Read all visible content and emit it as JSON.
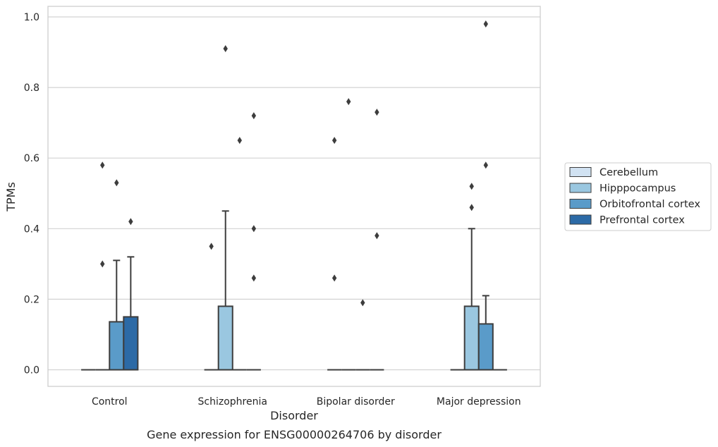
{
  "caption": "Gene expression for ENSG00000264706 by disorder",
  "chart_data": {
    "type": "box",
    "xlabel": "Disorder",
    "ylabel": "TPMs",
    "ylim": [
      -0.047,
      1.03
    ],
    "yticks": [
      "0.0",
      "0.2",
      "0.4",
      "0.6",
      "0.8",
      "1.0"
    ],
    "grid": true,
    "legend_position": "right",
    "categories": [
      "Control",
      "Schizophrenia",
      "Bipolar disorder",
      "Major depression"
    ],
    "series": [
      {
        "name": "Cerebellum",
        "color": "#d1e2f2",
        "boxes": [
          {
            "q1": 0,
            "median": 0,
            "q3": 0,
            "whisker_low": 0,
            "whisker_high": 0,
            "outliers": []
          },
          {
            "q1": 0,
            "median": 0,
            "q3": 0,
            "whisker_low": 0,
            "whisker_high": 0,
            "outliers": [
              0.35
            ]
          },
          {
            "q1": 0,
            "median": 0,
            "q3": 0,
            "whisker_low": 0,
            "whisker_high": 0,
            "outliers": [
              0.65,
              0.26
            ]
          },
          {
            "q1": 0,
            "median": 0,
            "q3": 0,
            "whisker_low": 0,
            "whisker_high": 0,
            "outliers": []
          }
        ]
      },
      {
        "name": "Hipppocampus",
        "color": "#9ac7e0",
        "boxes": [
          {
            "q1": 0,
            "median": 0,
            "q3": 0,
            "whisker_low": 0,
            "whisker_high": 0,
            "outliers": [
              0.58,
              0.3
            ]
          },
          {
            "q1": 0,
            "median": 0,
            "q3": 0.18,
            "whisker_low": 0,
            "whisker_high": 0.45,
            "outliers": [
              0.91
            ]
          },
          {
            "q1": 0,
            "median": 0,
            "q3": 0,
            "whisker_low": 0,
            "whisker_high": 0,
            "outliers": [
              0.76
            ]
          },
          {
            "q1": 0,
            "median": 0,
            "q3": 0.18,
            "whisker_low": 0,
            "whisker_high": 0.4,
            "outliers": [
              0.52,
              0.46
            ]
          }
        ]
      },
      {
        "name": "Orbitofrontal cortex",
        "color": "#5a9bc9",
        "boxes": [
          {
            "q1": 0,
            "median": 0,
            "q3": 0.136,
            "whisker_low": 0,
            "whisker_high": 0.31,
            "outliers": [
              0.53
            ]
          },
          {
            "q1": 0,
            "median": 0,
            "q3": 0,
            "whisker_low": 0,
            "whisker_high": 0,
            "outliers": [
              0.65
            ]
          },
          {
            "q1": 0,
            "median": 0,
            "q3": 0,
            "whisker_low": 0,
            "whisker_high": 0,
            "outliers": [
              0.19
            ]
          },
          {
            "q1": 0,
            "median": 0,
            "q3": 0.13,
            "whisker_low": 0,
            "whisker_high": 0.21,
            "outliers": [
              0.98,
              0.58
            ]
          }
        ]
      },
      {
        "name": "Prefrontal cortex",
        "color": "#2c6aa6",
        "boxes": [
          {
            "q1": 0,
            "median": 0,
            "q3": 0.15,
            "whisker_low": 0,
            "whisker_high": 0.32,
            "outliers": [
              0.42
            ]
          },
          {
            "q1": 0,
            "median": 0,
            "q3": 0,
            "whisker_low": 0,
            "whisker_high": 0,
            "outliers": [
              0.72,
              0.4,
              0.26
            ]
          },
          {
            "q1": 0,
            "median": 0,
            "q3": 0,
            "whisker_low": 0,
            "whisker_high": 0,
            "outliers": [
              0.73,
              0.38
            ]
          },
          {
            "q1": 0,
            "median": 0,
            "q3": 0,
            "whisker_low": 0,
            "whisker_high": 0,
            "outliers": []
          }
        ]
      }
    ]
  }
}
